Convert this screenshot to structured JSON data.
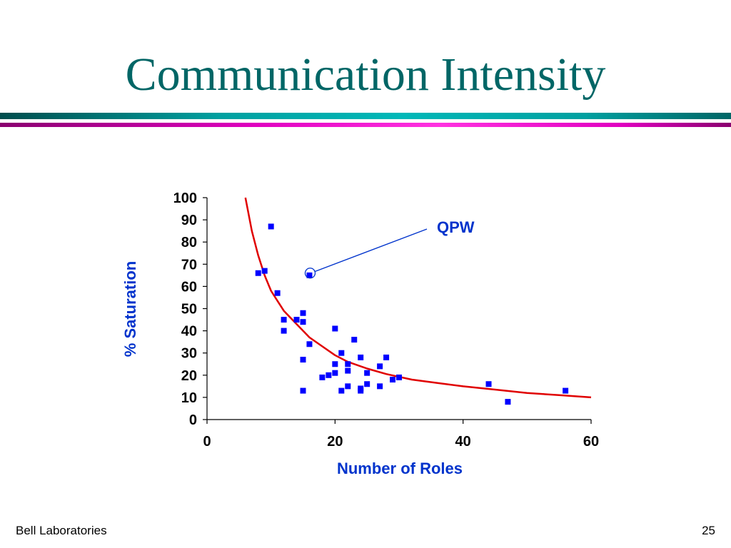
{
  "slide": {
    "title": "Communication Intensity",
    "footer_left": "Bell Laboratories",
    "page_number": "25"
  },
  "colors": {
    "title": "#006666",
    "rule_teal": "#00b0b0",
    "rule_magenta": "#e000c0",
    "points": "#0000ff",
    "fit_curve": "#e00000",
    "axis_labels": "#0033cc"
  },
  "chart_data": {
    "type": "scatter",
    "xlabel": "Number of Roles",
    "ylabel": "% Saturation",
    "xlim": [
      0,
      60
    ],
    "ylim": [
      0,
      100
    ],
    "xticks": [
      0,
      20,
      40,
      60
    ],
    "yticks": [
      0,
      10,
      20,
      30,
      40,
      50,
      60,
      70,
      80,
      90,
      100
    ],
    "grid": false,
    "points": [
      {
        "x": 8,
        "y": 66
      },
      {
        "x": 9,
        "y": 67
      },
      {
        "x": 10,
        "y": 87
      },
      {
        "x": 11,
        "y": 57
      },
      {
        "x": 12,
        "y": 45
      },
      {
        "x": 12,
        "y": 40
      },
      {
        "x": 14,
        "y": 45
      },
      {
        "x": 15,
        "y": 48
      },
      {
        "x": 15,
        "y": 44
      },
      {
        "x": 15,
        "y": 27
      },
      {
        "x": 15,
        "y": 13
      },
      {
        "x": 16,
        "y": 65
      },
      {
        "x": 16,
        "y": 34
      },
      {
        "x": 18,
        "y": 19
      },
      {
        "x": 19,
        "y": 20
      },
      {
        "x": 20,
        "y": 41
      },
      {
        "x": 20,
        "y": 25
      },
      {
        "x": 20,
        "y": 21
      },
      {
        "x": 21,
        "y": 30
      },
      {
        "x": 21,
        "y": 13
      },
      {
        "x": 22,
        "y": 25
      },
      {
        "x": 22,
        "y": 22
      },
      {
        "x": 22,
        "y": 15
      },
      {
        "x": 23,
        "y": 36
      },
      {
        "x": 24,
        "y": 28
      },
      {
        "x": 24,
        "y": 14
      },
      {
        "x": 24,
        "y": 13
      },
      {
        "x": 25,
        "y": 21
      },
      {
        "x": 25,
        "y": 16
      },
      {
        "x": 27,
        "y": 24
      },
      {
        "x": 27,
        "y": 15
      },
      {
        "x": 28,
        "y": 28
      },
      {
        "x": 29,
        "y": 18
      },
      {
        "x": 30,
        "y": 19
      },
      {
        "x": 44,
        "y": 16
      },
      {
        "x": 47,
        "y": 8
      },
      {
        "x": 56,
        "y": 13
      }
    ],
    "fit_curve": [
      {
        "x": 6,
        "y": 100
      },
      {
        "x": 7,
        "y": 85
      },
      {
        "x": 8,
        "y": 74
      },
      {
        "x": 9,
        "y": 65
      },
      {
        "x": 10,
        "y": 58
      },
      {
        "x": 12,
        "y": 49
      },
      {
        "x": 14,
        "y": 43
      },
      {
        "x": 16,
        "y": 37
      },
      {
        "x": 18,
        "y": 33
      },
      {
        "x": 20,
        "y": 29
      },
      {
        "x": 22,
        "y": 26
      },
      {
        "x": 25,
        "y": 23
      },
      {
        "x": 28,
        "y": 20.5
      },
      {
        "x": 32,
        "y": 18
      },
      {
        "x": 36,
        "y": 16.5
      },
      {
        "x": 40,
        "y": 15
      },
      {
        "x": 45,
        "y": 13.5
      },
      {
        "x": 50,
        "y": 12
      },
      {
        "x": 55,
        "y": 11
      },
      {
        "x": 60,
        "y": 10
      }
    ],
    "annotations": [
      {
        "text": "QPW",
        "x": 16,
        "y": 66
      }
    ]
  }
}
